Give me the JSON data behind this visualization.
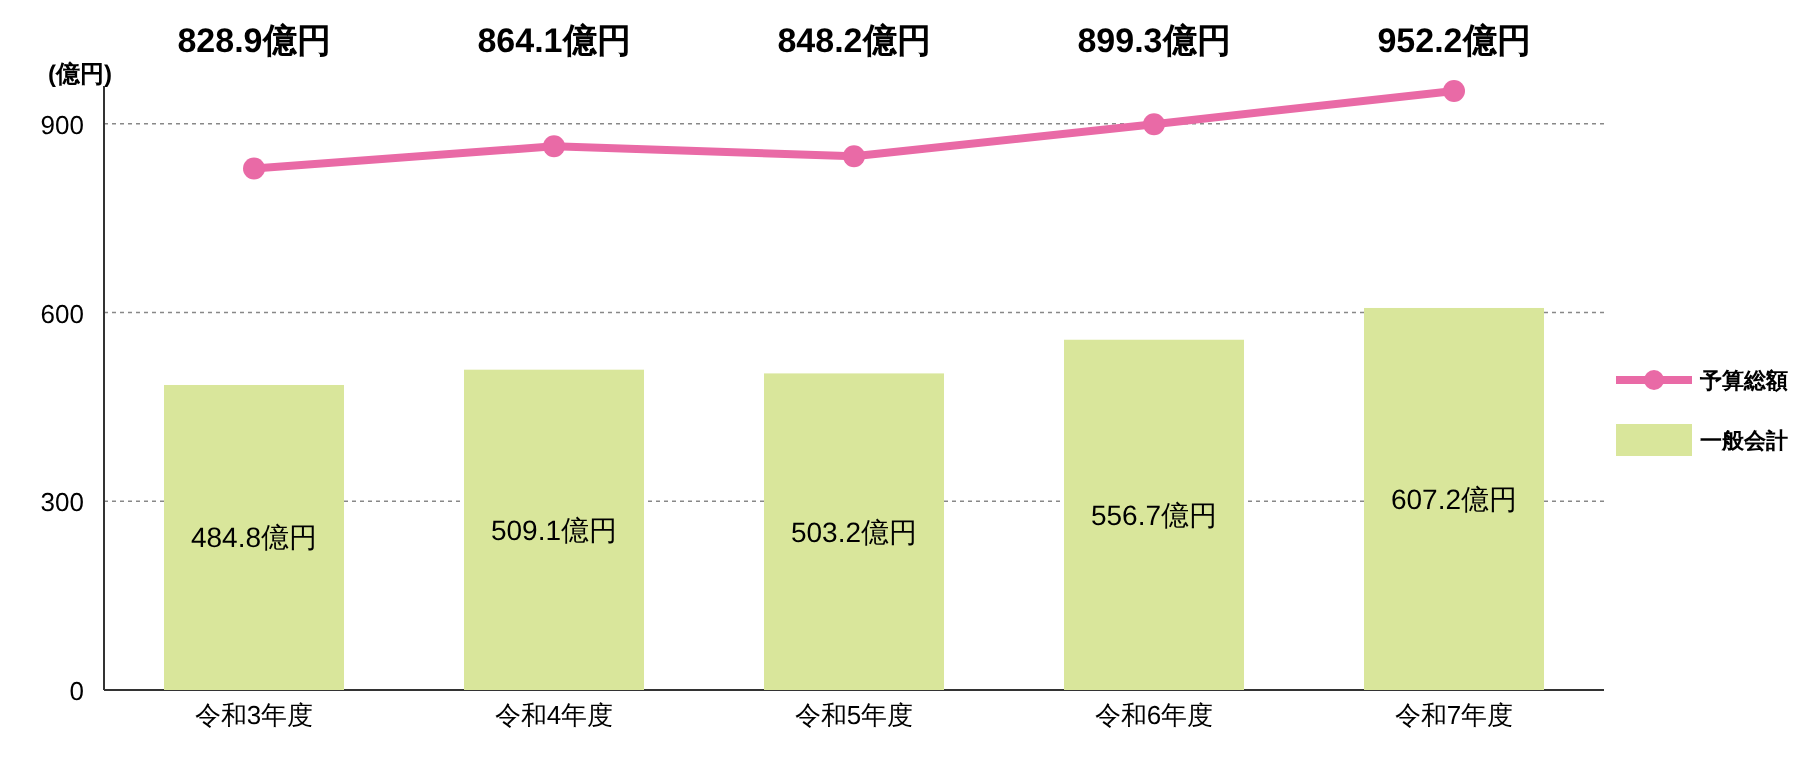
{
  "chart_data": {
    "type": "bar",
    "ylabel": "(億円)",
    "categories": [
      "令和3年度",
      "令和4年度",
      "令和5年度",
      "令和6年度",
      "令和7年度"
    ],
    "series": [
      {
        "name": "予算総額",
        "type": "line",
        "color": "#e96aa6",
        "values": [
          828.9,
          864.1,
          848.2,
          899.3,
          952.2
        ],
        "value_labels": [
          "828.9億円",
          "864.1億円",
          "848.2億円",
          "899.3億円",
          "952.2億円"
        ]
      },
      {
        "name": "一般会計",
        "color": "#d9e69b",
        "values": [
          484.8,
          509.1,
          503.2,
          556.7,
          607.2
        ],
        "value_labels": [
          "484.8億円",
          "509.1億円",
          "503.2億円",
          "556.7億円",
          "607.2億円"
        ]
      }
    ],
    "ylim": [
      0,
      960
    ],
    "yticks": [
      0,
      300,
      600,
      900
    ],
    "grid": "y",
    "legend": "right",
    "marker": "circle"
  }
}
